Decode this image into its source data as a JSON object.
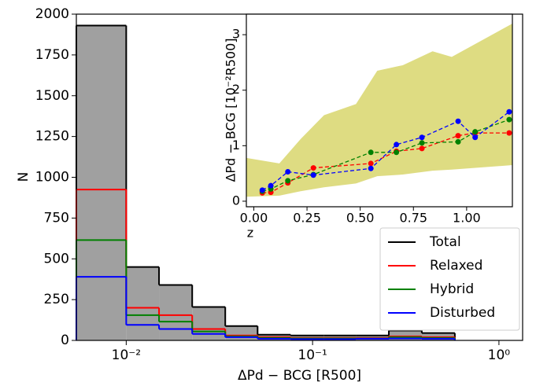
{
  "chart_data": [
    {
      "type": "histogram",
      "log_x": true,
      "xlabel": "ΔPd − BCG [R500]",
      "ylabel": "N",
      "bins": [
        0.0054,
        0.01,
        0.015,
        0.0226,
        0.034,
        0.0507,
        0.0762,
        0.1146,
        0.1706,
        0.2566,
        0.3855,
        0.58
      ],
      "series": [
        {
          "name": "Total",
          "color": "#000000",
          "fill": "#a0a0a0",
          "values": [
            1930,
            450,
            340,
            205,
            88,
            35,
            30,
            30,
            30,
            60,
            45
          ]
        },
        {
          "name": "Relaxed",
          "color": "#ff0000",
          "values": [
            925,
            200,
            155,
            70,
            30,
            20,
            15,
            15,
            15,
            25,
            20
          ]
        },
        {
          "name": "Hybrid",
          "color": "#008000",
          "values": [
            615,
            155,
            115,
            55,
            25,
            15,
            12,
            12,
            12,
            20,
            15
          ]
        },
        {
          "name": "Disturbed",
          "color": "#0000ff",
          "values": [
            390,
            95,
            70,
            40,
            20,
            10,
            8,
            8,
            10,
            12,
            10
          ]
        }
      ],
      "xlim": [
        0.0054,
        1.34
      ],
      "ylim": [
        0,
        2000
      ],
      "xticks": [
        {
          "value": 0.01,
          "label": "10⁻²"
        },
        {
          "value": 0.1,
          "label": "10⁻¹"
        },
        {
          "value": 1,
          "label": "10⁰"
        }
      ],
      "yticks": [
        0,
        250,
        500,
        750,
        1000,
        1250,
        1500,
        1750,
        2000
      ],
      "legend": "lower right"
    },
    {
      "type": "line",
      "xlabel": "z",
      "ylabel": "ΔPd − BCG [10⁻²R500]",
      "x": [
        0.04,
        0.08,
        0.16,
        0.28,
        0.55,
        0.67,
        0.79,
        0.96,
        1.04,
        1.2
      ],
      "series": [
        {
          "name": "Relaxed",
          "color": "#ff0000",
          "values": [
            0.15,
            0.16,
            0.33,
            0.6,
            0.68,
            0.9,
            0.95,
            1.18,
            1.23,
            1.23
          ]
        },
        {
          "name": "Hybrid",
          "color": "#008000",
          "values": [
            0.18,
            0.22,
            0.37,
            0.48,
            0.88,
            0.88,
            1.05,
            1.07,
            1.25,
            1.47
          ]
        },
        {
          "name": "Disturbed",
          "color": "#0000ff",
          "values": [
            0.2,
            0.28,
            0.53,
            0.47,
            0.59,
            1.02,
            1.15,
            1.44,
            1.15,
            1.61
          ]
        }
      ],
      "band": {
        "color": "#d8d66c",
        "x": [
          -0.035,
          0.12,
          0.22,
          0.33,
          0.48,
          0.58,
          0.7,
          0.84,
          0.93,
          1.215
        ],
        "lower": [
          0.08,
          0.1,
          0.18,
          0.25,
          0.32,
          0.45,
          0.48,
          0.55,
          0.57,
          0.65
        ],
        "upper": [
          0.78,
          0.68,
          1.12,
          1.55,
          1.75,
          2.35,
          2.45,
          2.7,
          2.6,
          3.2
        ]
      },
      "xlim": [
        -0.035,
        1.215
      ],
      "ylim": [
        -0.1,
        3.37
      ],
      "xticks": [
        {
          "value": 0,
          "label": "0.00"
        },
        {
          "value": 0.25,
          "label": "0.25"
        },
        {
          "value": 0.5,
          "label": "0.50"
        },
        {
          "value": 0.75,
          "label": "0.75"
        },
        {
          "value": 1,
          "label": "1.00"
        }
      ],
      "yticks": [
        0,
        1,
        2,
        3
      ]
    }
  ]
}
